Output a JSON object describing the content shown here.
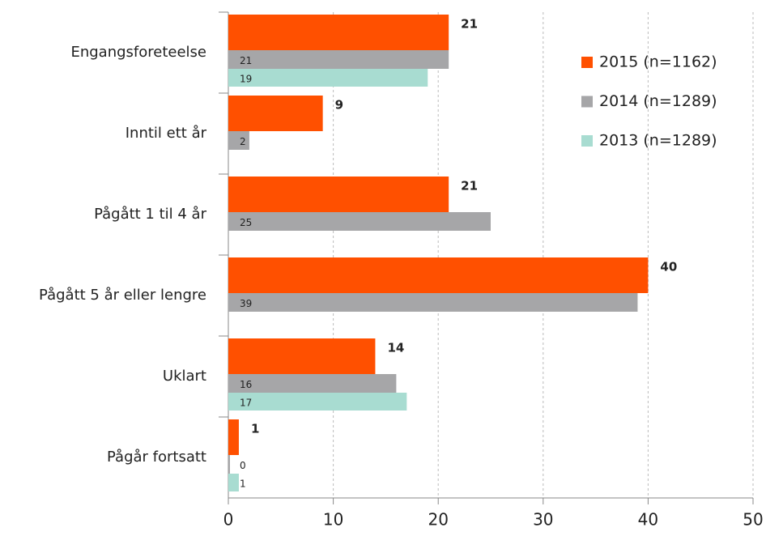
{
  "chart_data": {
    "type": "barh",
    "categories": [
      "Engangsforeteelse",
      "Inntil ett år",
      "Pågått 1 til 4 år",
      "Pågått 5 år eller lengre",
      "Uklart",
      "Pågår fortsatt"
    ],
    "series": [
      {
        "name": "2015 (n=1162)",
        "color": "#ff5000",
        "values": [
          21,
          9,
          21,
          40,
          14,
          1
        ]
      },
      {
        "name": "2014 (n=1289)",
        "color": "#a6a6a8",
        "values": [
          21,
          2,
          25,
          39,
          16,
          0
        ]
      },
      {
        "name": "2013 (n=1289)",
        "color": "#a8dcd1",
        "values": [
          19,
          null,
          null,
          null,
          17,
          1
        ]
      }
    ],
    "xlim": [
      0,
      50
    ],
    "xticks": [
      0,
      10,
      20,
      30,
      40,
      50
    ],
    "grid": true,
    "legend": "upper right"
  }
}
